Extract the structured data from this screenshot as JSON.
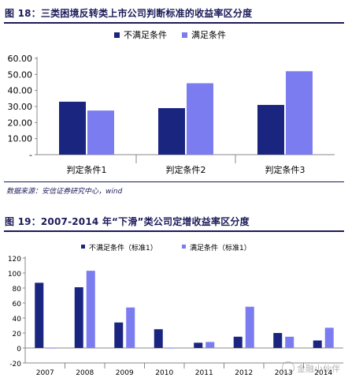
{
  "figure18": {
    "title": "图 18：三类困境反转类上市公司判断标准的收益率区分度",
    "source": "数据来源：安信证券研究中心，wind"
  },
  "figure19": {
    "title": "图 19：2007-2014 年“下滑”类公司定增收益率区分度"
  },
  "watermark": {
    "text": "金融小伙伴"
  },
  "colors": {
    "series1": "#1a2580",
    "series2": "#7b7cf0",
    "title": "#1b1b5a"
  },
  "chart_data": [
    {
      "type": "bar",
      "categories": [
        "判定条件1",
        "判定条件2",
        "判定条件3"
      ],
      "series": [
        {
          "name": "不满足条件",
          "values": [
            33,
            29,
            31
          ]
        },
        {
          "name": "满足条件",
          "values": [
            27.5,
            44.5,
            52
          ]
        }
      ],
      "yticks": [
        "-",
        "10.00",
        "20.00",
        "30.00",
        "40.00",
        "50.00",
        "60.00"
      ],
      "ylim": [
        0,
        60
      ],
      "legend": "top-center",
      "grid": false
    },
    {
      "type": "bar",
      "categories": [
        "2007",
        "2008",
        "2009",
        "2010",
        "2011",
        "2012",
        "2013",
        "2014"
      ],
      "series": [
        {
          "name": "不满足条件（标准1）",
          "values": [
            87,
            81,
            34,
            25,
            7,
            15,
            20,
            10
          ]
        },
        {
          "name": "满足条件（标准1）",
          "values": [
            0,
            103,
            54,
            0,
            8,
            55,
            15,
            27
          ]
        }
      ],
      "yticks": [
        "-20",
        "0",
        "20",
        "40",
        "60",
        "80",
        "100",
        "120"
      ],
      "ylim": [
        -20,
        120
      ],
      "legend": "top-center",
      "grid": false
    }
  ]
}
